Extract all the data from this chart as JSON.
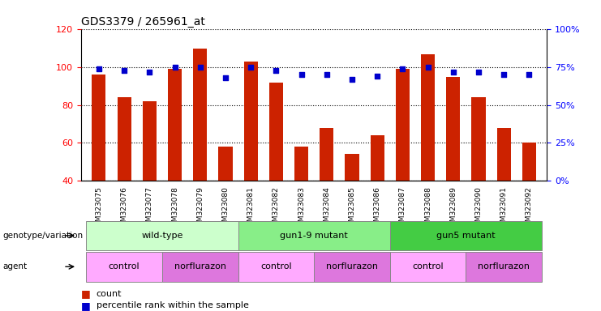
{
  "title": "GDS3379 / 265961_at",
  "samples": [
    "GSM323075",
    "GSM323076",
    "GSM323077",
    "GSM323078",
    "GSM323079",
    "GSM323080",
    "GSM323081",
    "GSM323082",
    "GSM323083",
    "GSM323084",
    "GSM323085",
    "GSM323086",
    "GSM323087",
    "GSM323088",
    "GSM323089",
    "GSM323090",
    "GSM323091",
    "GSM323092"
  ],
  "bar_values": [
    96,
    84,
    82,
    99,
    110,
    58,
    103,
    92,
    58,
    68,
    54,
    64,
    99,
    107,
    95,
    84,
    68,
    60
  ],
  "dot_values_pct": [
    74,
    73,
    72,
    75,
    75,
    68,
    75,
    73,
    70,
    70,
    67,
    69,
    74,
    75,
    72,
    72,
    70,
    70
  ],
  "bar_color": "#cc2200",
  "dot_color": "#0000cc",
  "ylim_left": [
    40,
    120
  ],
  "ylim_right": [
    0,
    100
  ],
  "yticks_left": [
    40,
    60,
    80,
    100,
    120
  ],
  "yticks_right": [
    0,
    25,
    50,
    75,
    100
  ],
  "yticklabels_right": [
    "0%",
    "25%",
    "50%",
    "75%",
    "100%"
  ],
  "groups": [
    {
      "label": "wild-type",
      "start": 0,
      "end": 6,
      "color": "#ccffcc"
    },
    {
      "label": "gun1-9 mutant",
      "start": 6,
      "end": 12,
      "color": "#88ee88"
    },
    {
      "label": "gun5 mutant",
      "start": 12,
      "end": 18,
      "color": "#44cc44"
    }
  ],
  "agents": [
    {
      "label": "control",
      "start": 0,
      "end": 3,
      "color": "#ffaaff"
    },
    {
      "label": "norflurazon",
      "start": 3,
      "end": 6,
      "color": "#dd77dd"
    },
    {
      "label": "control",
      "start": 6,
      "end": 9,
      "color": "#ffaaff"
    },
    {
      "label": "norflurazon",
      "start": 9,
      "end": 12,
      "color": "#dd77dd"
    },
    {
      "label": "control",
      "start": 12,
      "end": 15,
      "color": "#ffaaff"
    },
    {
      "label": "norflurazon",
      "start": 15,
      "end": 18,
      "color": "#dd77dd"
    }
  ]
}
